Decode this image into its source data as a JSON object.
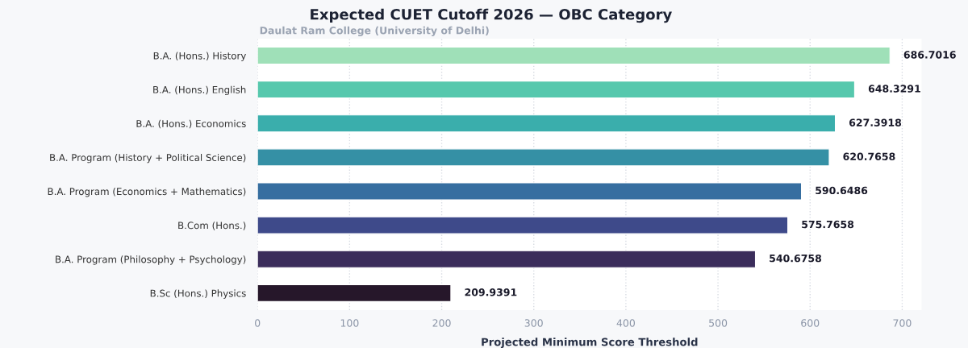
{
  "chart_data": {
    "type": "bar",
    "orientation": "horizontal",
    "title": "Expected CUET Cutoff 2026 — OBC Category",
    "subtitle": "Daulat Ram College (University of Delhi)",
    "xlabel": "Projected Minimum Score Threshold",
    "categories": [
      "B.A. (Hons.) History",
      "B.A. (Hons.) English",
      "B.A. (Hons.) Economics",
      "B.A. Program (History + Political Science)",
      "B.A. Program (Economics + Mathematics)",
      "B.Com (Hons.)",
      "B.A. Program (Philosophy + Psychology)",
      "B.Sc (Hons.) Physics"
    ],
    "values": [
      686.7016,
      648.3291,
      627.3918,
      620.7658,
      590.6486,
      575.7658,
      540.6758,
      209.9391
    ],
    "colors": [
      "#9fe0b8",
      "#56c8ad",
      "#3aaeac",
      "#3590a5",
      "#366ea0",
      "#3e4a8a",
      "#3b2d5b",
      "#26172a"
    ],
    "data_labels": true,
    "xlim": [
      0,
      721
    ],
    "xticks": [
      0,
      100,
      200,
      300,
      400,
      500,
      600,
      700
    ],
    "grid": "x"
  }
}
